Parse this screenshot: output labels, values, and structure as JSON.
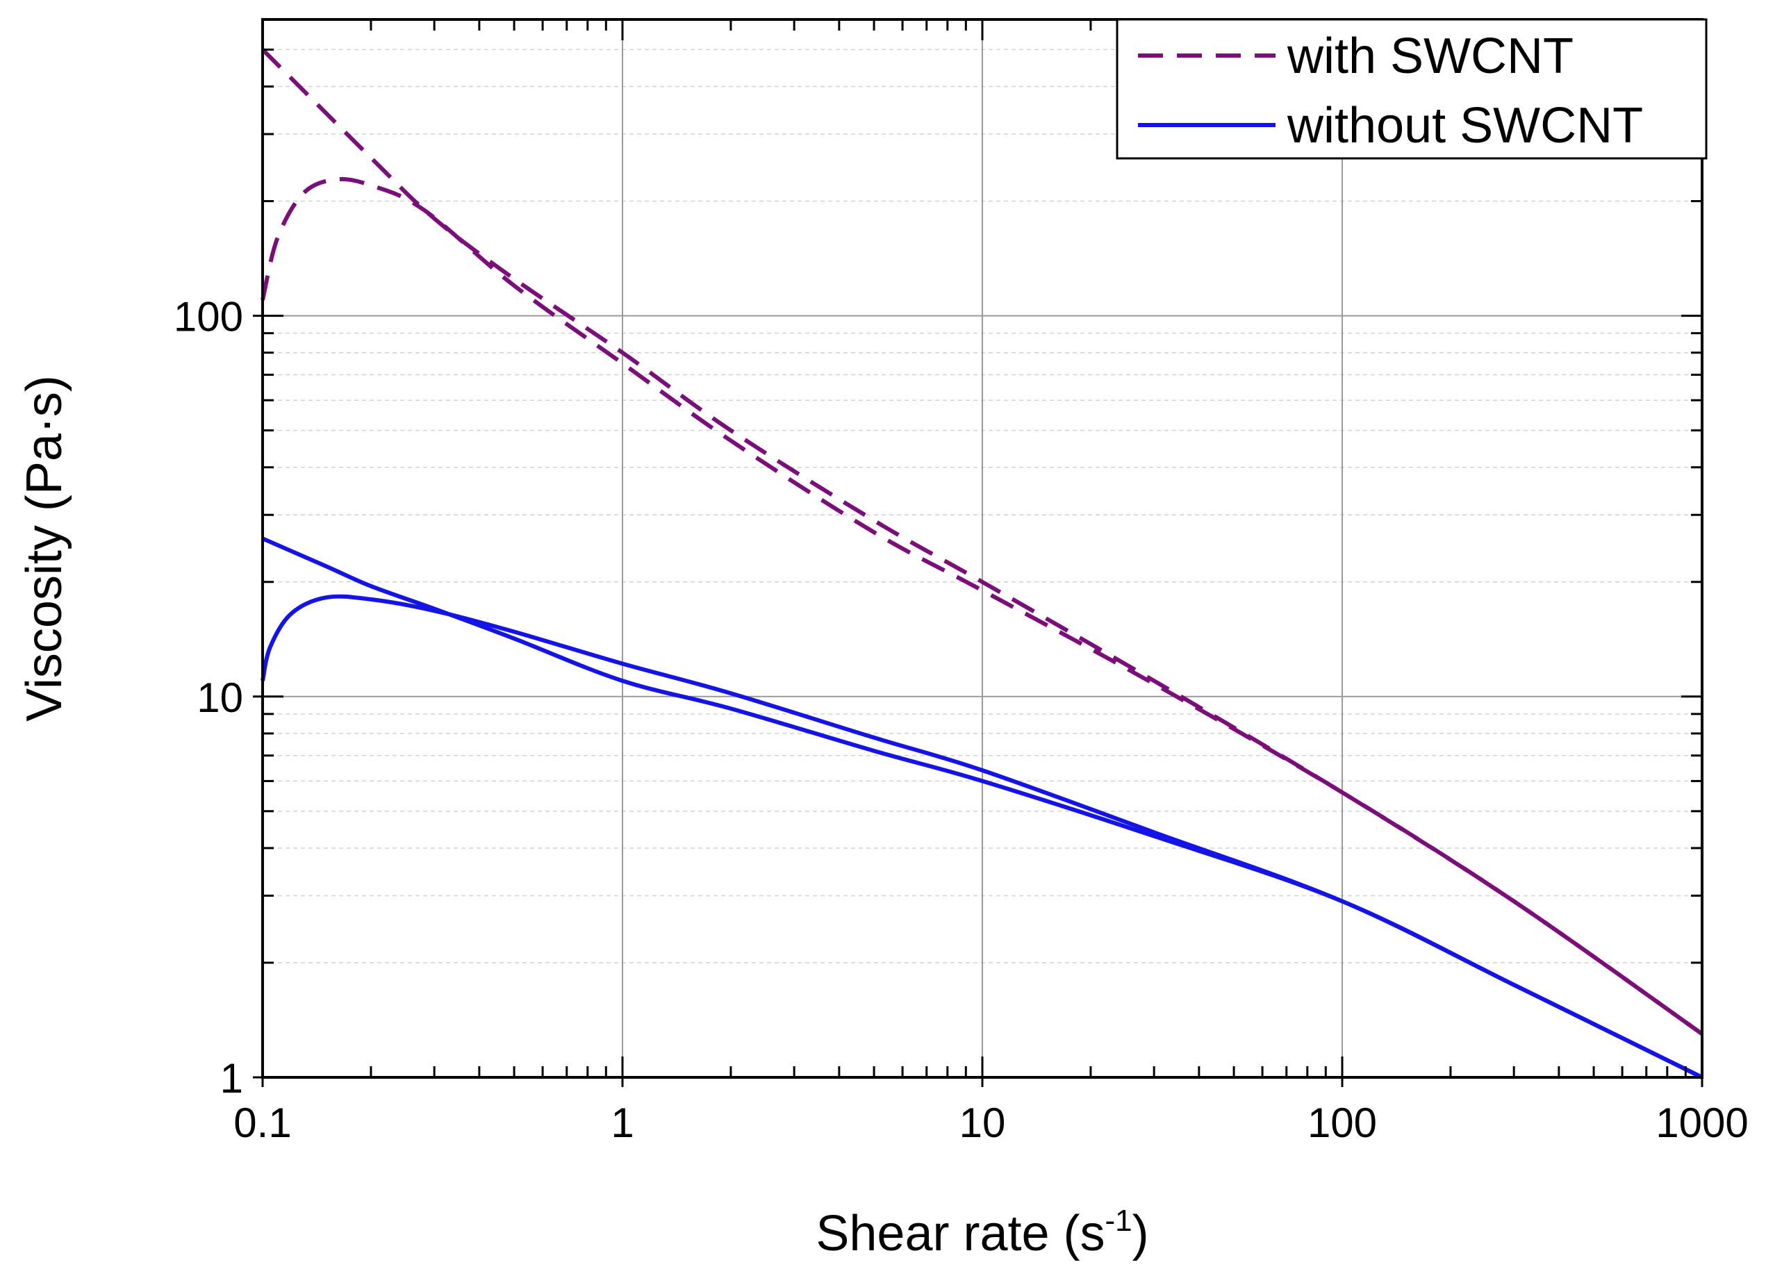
{
  "chart_data": {
    "type": "line",
    "xscale": "log",
    "yscale": "log",
    "xlim": [
      0.1,
      1000
    ],
    "ylim": [
      1,
      600
    ],
    "xlabel": "Shear rate (s",
    "xlabel_sup": "-1",
    "xlabel_suffix": ")",
    "ylabel": "Viscosity (Pa·s)",
    "x_ticks": [
      {
        "value": 0.1,
        "label": "0.1"
      },
      {
        "value": 1,
        "label": "1"
      },
      {
        "value": 10,
        "label": "10"
      },
      {
        "value": 100,
        "label": "100"
      },
      {
        "value": 1000,
        "label": "1000"
      }
    ],
    "y_ticks": [
      {
        "value": 1,
        "label": "1"
      },
      {
        "value": 10,
        "label": "10"
      },
      {
        "value": 100,
        "label": "100"
      }
    ],
    "grid": true,
    "legend_position": "top-right",
    "series": [
      {
        "name": "with SWCNT",
        "color": "#7a0f7a",
        "style": "dashed",
        "segments": [
          {
            "x": [
              0.1,
              0.2,
              0.3,
              0.5,
              1,
              2,
              5,
              10,
              30,
              100,
              300,
              1000
            ],
            "y": [
              500,
              260,
              180,
              125,
              80,
              50,
              29,
              20,
              11,
              5.6,
              2.9,
              1.3
            ]
          },
          {
            "x": [
              0.1,
              0.11,
              0.13,
              0.16,
              0.2,
              0.28,
              0.5,
              1,
              2,
              5,
              10,
              30,
              100,
              300,
              1000
            ],
            "y": [
              110,
              160,
              210,
              228,
              220,
              190,
              120,
              75,
              47,
              27,
              19,
              10.8,
              5.6,
              2.9,
              1.3
            ]
          }
        ]
      },
      {
        "name": "without SWCNT",
        "color": "#1414e6",
        "style": "solid",
        "segments": [
          {
            "x": [
              0.1,
              0.15,
              0.2,
              0.3,
              0.5,
              1,
              2,
              5,
              10,
              30,
              100,
              300,
              1000
            ],
            "y": [
              26,
              22,
              19.5,
              17,
              14.2,
              11,
              9.3,
              7.2,
              6,
              4.3,
              2.9,
              1.75,
              1.0
            ]
          },
          {
            "x": [
              0.1,
              0.105,
              0.12,
              0.15,
              0.2,
              0.3,
              0.5,
              1,
              2,
              5,
              10,
              30,
              100,
              300,
              1000
            ],
            "y": [
              11,
              13.5,
              16.5,
              18.2,
              18,
              16.8,
              14.8,
              12.2,
              10.2,
              7.8,
              6.4,
              4.4,
              2.9,
              1.75,
              1.0
            ]
          }
        ]
      }
    ]
  }
}
